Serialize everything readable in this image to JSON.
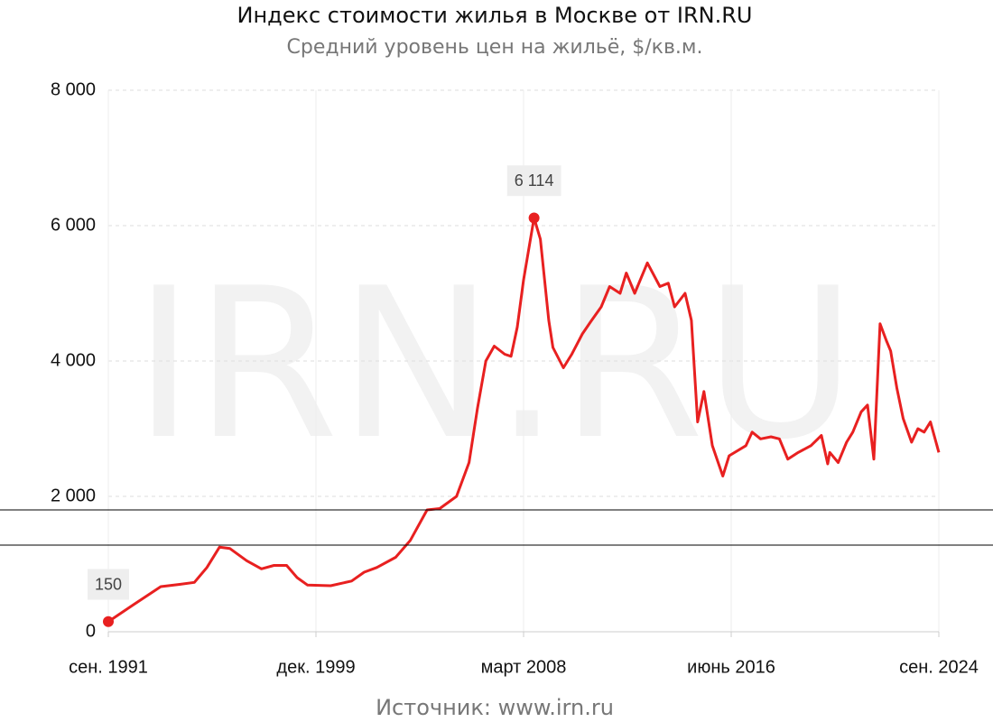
{
  "chart_data": {
    "type": "line",
    "title": "Индекс стоимости жилья в Москве от IRN.RU",
    "subtitle": "Средний уровень цен на жильё, $/кв.м.",
    "source": "Источник: www.irn.ru",
    "watermark": "IRN.RU",
    "color": "#e82020",
    "grid": true,
    "x": [
      "1991-09",
      "1992-09",
      "1993-10",
      "1994-07",
      "1995-02",
      "1995-08",
      "1996-02",
      "1996-07",
      "1997-03",
      "1997-10",
      "1998-04",
      "1998-10",
      "1999-03",
      "1999-08",
      "2000-07",
      "2001-05",
      "2001-11",
      "2002-05",
      "2003-02",
      "2003-09",
      "2004-05",
      "2004-11",
      "2005-07",
      "2006-01",
      "2006-05",
      "2006-09",
      "2007-01",
      "2007-06",
      "2007-09",
      "2007-12",
      "2008-03",
      "2008-08",
      "2008-11",
      "2009-03",
      "2009-05",
      "2009-10",
      "2010-02",
      "2010-07",
      "2010-11",
      "2011-04",
      "2011-08",
      "2012-01",
      "2012-04",
      "2012-08",
      "2013-02",
      "2013-08",
      "2013-12",
      "2014-03",
      "2014-08",
      "2014-11",
      "2015-02",
      "2015-05",
      "2015-09",
      "2016-02",
      "2016-05",
      "2017-01",
      "2017-04",
      "2017-08",
      "2018-01",
      "2018-05",
      "2018-09",
      "2019-02",
      "2019-08",
      "2020-01",
      "2020-04",
      "2020-05",
      "2020-09",
      "2021-01",
      "2021-04",
      "2021-08",
      "2021-11",
      "2022-02",
      "2022-05",
      "2022-08",
      "2022-10",
      "2023-01",
      "2023-04",
      "2023-08",
      "2023-11",
      "2024-02",
      "2024-05",
      "2024-09"
    ],
    "values": [
      150,
      400,
      667,
      700,
      730,
      950,
      1250,
      1230,
      1050,
      930,
      980,
      980,
      800,
      690,
      680,
      750,
      880,
      950,
      1100,
      1350,
      1800,
      1820,
      2000,
      2500,
      3300,
      4000,
      4220,
      4100,
      4070,
      4500,
      5200,
      6114,
      5800,
      4600,
      4200,
      3900,
      4100,
      4400,
      4580,
      4800,
      5100,
      5000,
      5300,
      5000,
      5450,
      5100,
      5150,
      4800,
      5000,
      4600,
      3100,
      3550,
      2750,
      2300,
      2600,
      2750,
      2950,
      2850,
      2880,
      2850,
      2550,
      2650,
      2750,
      2900,
      2480,
      2650,
      2500,
      2800,
      2950,
      3250,
      3350,
      2550,
      4550,
      4300,
      4150,
      3600,
      3150,
      2800,
      3000,
      2950,
      3100,
      2650
    ],
    "value_labels": [
      "150",
      null,
      null,
      null,
      null,
      null,
      null,
      null,
      null,
      null,
      null,
      null,
      null,
      null,
      null,
      null,
      null,
      null,
      null,
      null,
      null,
      null,
      null,
      null,
      null,
      null,
      null,
      null,
      null,
      null,
      null,
      "6 114",
      null,
      null,
      null,
      null,
      null,
      null,
      null,
      null,
      null,
      null,
      null,
      null,
      null,
      null,
      null,
      null,
      null,
      null,
      null,
      null,
      null,
      null,
      null,
      null,
      null,
      null,
      null,
      null,
      null,
      null,
      null,
      null,
      null,
      null,
      null,
      null,
      null,
      null,
      null,
      null,
      null,
      null,
      null,
      null,
      null,
      null,
      null,
      null,
      null,
      null
    ],
    "xlim": [
      "1991-09",
      "2024-09"
    ],
    "xticks": [
      {
        "value": "1991-09",
        "label": "сен. 1991"
      },
      {
        "value": "1999-12",
        "label": "дек. 1999"
      },
      {
        "value": "2008-03",
        "label": "март 2008"
      },
      {
        "value": "2016-06",
        "label": "июнь 2016"
      },
      {
        "value": "2024-09",
        "label": "сен. 2024"
      }
    ],
    "ylim": [
      0,
      8000
    ],
    "yticks": [
      0,
      {
        "value": 2000,
        "label": "2 000"
      },
      {
        "value": 4000,
        "label": "4 000"
      },
      {
        "value": 6000,
        "label": "6 000"
      },
      {
        "value": 8000,
        "label": "8 000"
      }
    ],
    "reference_lines": [
      1800,
      1280
    ]
  }
}
